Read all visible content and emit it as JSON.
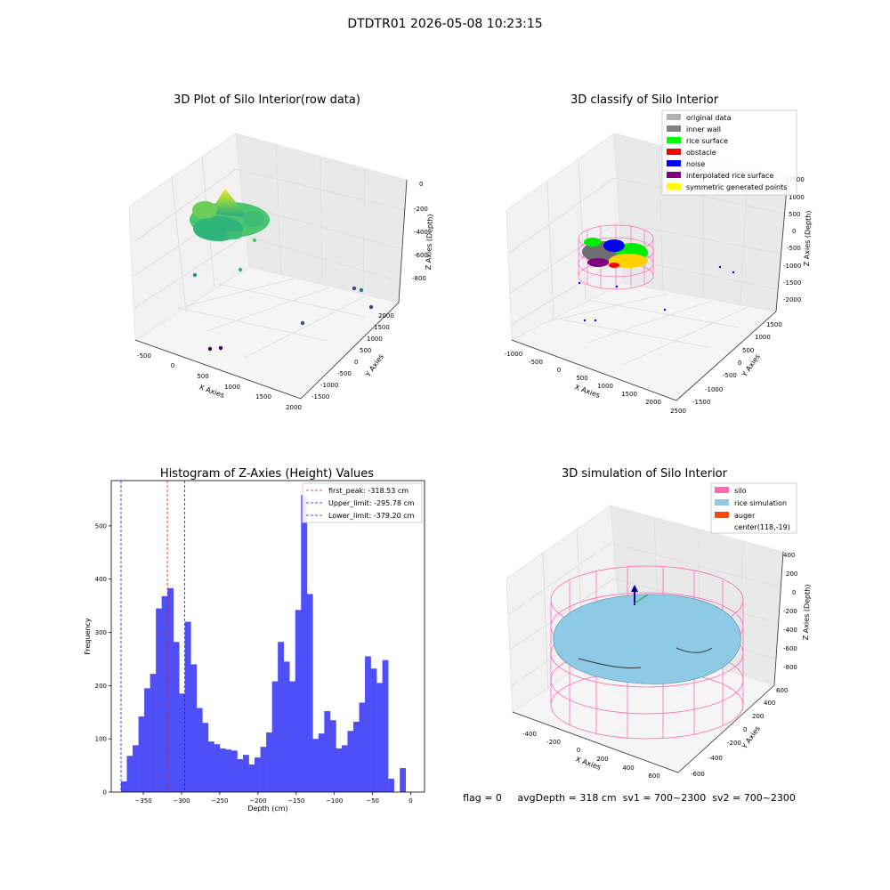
{
  "figure_title": "DTDTR01 2026-05-08 10:23:15",
  "status_line": "flag = 0     avgDepth = 318 cm  sv1 = 700~2300  sv2 = 700~2300",
  "colors": {
    "hist_bar": "#4f4ff7",
    "first_peak": "#e01b1b",
    "limit": "#1a1ad6",
    "silo": "#ff69b4",
    "rice_sim": "#8ecae6",
    "auger": "#ff4500",
    "inner_wall": "#808080",
    "rice_surface": "#00ff00",
    "obstacle": "#ff0000",
    "noise": "#0000ff",
    "interp": "#800080",
    "symmetric": "#ffff00",
    "original": "#b0b0b0"
  },
  "chart_data": [
    {
      "type": "scatter",
      "title": "3D Plot of Silo Interior(row data)",
      "xlabel": "X Axies",
      "ylabel": "Y Axies",
      "zlabel": "Z Axies (Depth)",
      "x_ticks": [
        "-500",
        "0",
        "500",
        "1000",
        "1500",
        "2000"
      ],
      "y_ticks": [
        "-1500",
        "-1000",
        "-500",
        "0",
        "500",
        "1000",
        "1500",
        "2000"
      ],
      "z_ticks": [
        "0",
        "-200",
        "-400",
        "-600",
        "-800"
      ],
      "grid": true
    },
    {
      "type": "scatter",
      "title": "3D classify of Silo Interior",
      "xlabel": "X Axies",
      "ylabel": "Y Axies",
      "zlabel": "Z Axies (Depth)",
      "x_ticks": [
        "-1000",
        "-500",
        "0",
        "500",
        "1000",
        "1500",
        "2000",
        "2500"
      ],
      "y_ticks": [
        "-1500",
        "-1000",
        "-500",
        "0",
        "500",
        "1000",
        "1500"
      ],
      "z_ticks": [
        "1500",
        "1000",
        "500",
        "0",
        "-500",
        "-1000",
        "-1500",
        "-2000"
      ],
      "legend": [
        "original data",
        "inner wall",
        "rice surface",
        "obstacle",
        "noise",
        "interpolated rice surface",
        "symmetric generated points"
      ],
      "legend_position": "top-right",
      "grid": true
    },
    {
      "type": "bar",
      "title": "Histogram of Z-Axies (Height) Values",
      "xlabel": "Depth (cm)",
      "ylabel": "Frequency",
      "xlim": [
        -392,
        18
      ],
      "ylim": [
        0,
        585
      ],
      "x_ticks": [
        -350,
        -300,
        -250,
        -200,
        -150,
        -100,
        -50,
        0
      ],
      "x_tick_labels": [
        "−350",
        "−300",
        "−250",
        "−200",
        "−150",
        "−100",
        "−50",
        "0"
      ],
      "y_ticks": [
        0,
        100,
        200,
        300,
        400,
        500
      ],
      "bin_start": -379.2,
      "bin_width": 7.6,
      "values": [
        20,
        68,
        88,
        142,
        195,
        222,
        345,
        368,
        383,
        282,
        185,
        320,
        240,
        158,
        130,
        95,
        90,
        82,
        80,
        78,
        62,
        70,
        52,
        65,
        85,
        112,
        208,
        282,
        245,
        208,
        342,
        558,
        372,
        100,
        110,
        152,
        135,
        82,
        88,
        115,
        132,
        168,
        255,
        232,
        205,
        248,
        25,
        0,
        45
      ],
      "lines": [
        {
          "label": "first_peak: -318.53 cm",
          "x": -318.53,
          "style": "red-dashed"
        },
        {
          "label": "Upper_limit: -295.78 cm",
          "x": -295.78,
          "style": "blue-dashed"
        },
        {
          "label": "Lower_limit: -379.20 cm",
          "x": -379.2,
          "style": "blue-dashed"
        }
      ],
      "legend_position": "top-right",
      "grid": false
    },
    {
      "type": "area",
      "title": "3D simulation of Silo Interior",
      "xlabel": "X Axies",
      "ylabel": "Y Axies",
      "zlabel": "Z Axies (Depth)",
      "x_ticks": [
        "-400",
        "-200",
        "0",
        "200",
        "400",
        "600"
      ],
      "y_ticks": [
        "-600",
        "-400",
        "-200",
        "0",
        "200",
        "400",
        "600"
      ],
      "z_ticks": [
        "400",
        "200",
        "0",
        "-200",
        "-400",
        "-600",
        "-800"
      ],
      "legend": [
        "silo",
        "rice simulation",
        "auger",
        "center(118,-19)"
      ],
      "legend_position": "top-right",
      "grid": true
    }
  ]
}
